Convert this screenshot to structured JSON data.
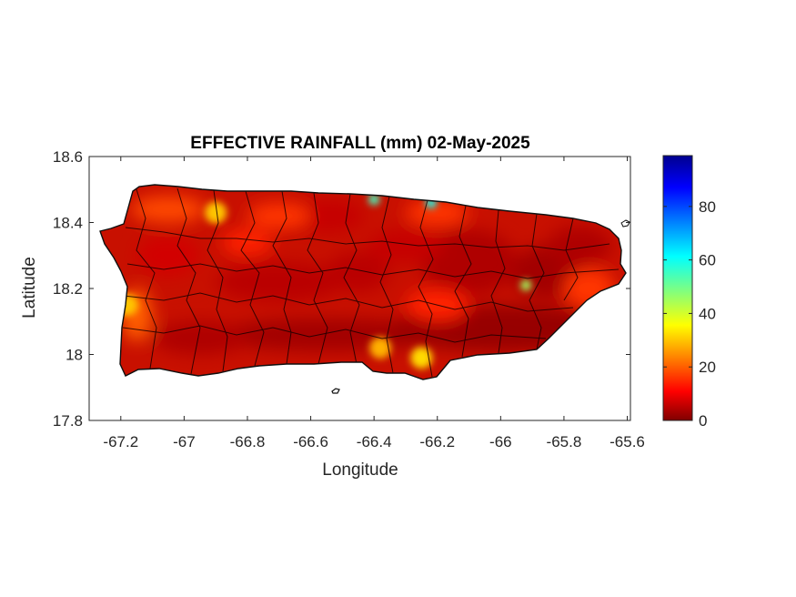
{
  "map": {
    "title": "EFFECTIVE RAINFALL (mm) 02-May-2025",
    "xlabel": "Longitude",
    "ylabel": "Latitude",
    "xlim": [
      -67.3,
      -65.59
    ],
    "ylim": [
      17.8,
      18.6
    ],
    "xticks": [
      -67.2,
      -67,
      -66.8,
      -66.6,
      -66.4,
      -66.2,
      -66,
      -65.8,
      -65.6
    ],
    "xtick_labels": [
      "-67.2",
      "-67",
      "-66.8",
      "-66.6",
      "-66.4",
      "-66.2",
      "-66",
      "-65.8",
      "-65.6"
    ],
    "yticks": [
      17.8,
      18,
      18.2,
      18.4,
      18.6
    ],
    "ytick_labels": [
      "17.8",
      "18",
      "18.2",
      "18.4",
      "18.6"
    ],
    "region": "Puerto Rico",
    "colormap": "jet",
    "colorbar": {
      "min": 0,
      "max": 99,
      "ticks": [
        0,
        20,
        40,
        60,
        80
      ],
      "tick_labels": [
        "0",
        "20",
        "40",
        "60",
        "80"
      ]
    },
    "notable_areas": [
      {
        "lon": -66.25,
        "lat": 17.99,
        "value": 32
      },
      {
        "lon": -66.38,
        "lat": 18.02,
        "value": 28
      },
      {
        "lon": -65.92,
        "lat": 18.21,
        "value": 45
      },
      {
        "lon": -66.4,
        "lat": 18.47,
        "value": 55
      },
      {
        "lon": -66.22,
        "lat": 18.46,
        "value": 60
      },
      {
        "lon": -67.18,
        "lat": 18.15,
        "value": 30
      },
      {
        "lon": -66.9,
        "lat": 18.43,
        "value": 30
      }
    ]
  }
}
